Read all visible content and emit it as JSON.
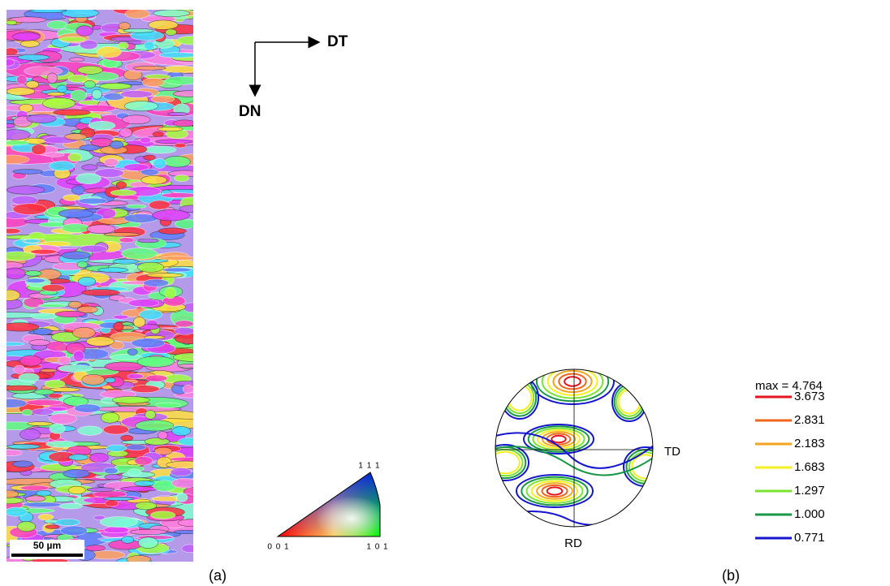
{
  "figure": {
    "directions": {
      "horizontal": "DT",
      "vertical": "DN"
    },
    "scale_bar": "50 µm",
    "ipf_key": {
      "top": "1 1 1",
      "left": "0 0 1",
      "right": "1 0 1"
    },
    "panel_a": "(a)",
    "pole_figure": {
      "x_label": "TD",
      "y_label": "RD",
      "max_label": "max = 4.764",
      "levels": [
        {
          "label": "3.673",
          "color": "#e5131b"
        },
        {
          "label": "2.831",
          "color": "#f0641c"
        },
        {
          "label": "2.183",
          "color": "#f2a51e"
        },
        {
          "label": "1.683",
          "color": "#f4ef1f"
        },
        {
          "label": "1.297",
          "color": "#78e431"
        },
        {
          "label": "1.000",
          "color": "#179846"
        },
        {
          "label": "0.771",
          "color": "#1515d0"
        }
      ]
    },
    "panel_b": "(b)"
  }
}
